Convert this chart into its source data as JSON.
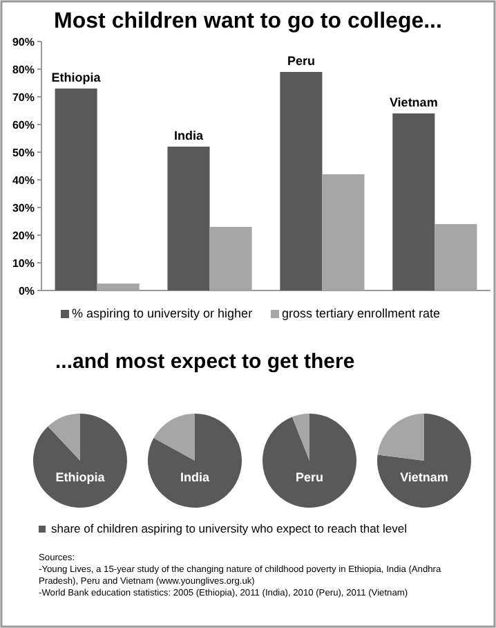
{
  "chart_data": [
    {
      "type": "bar",
      "title": "Most children want to go to college...",
      "categories": [
        "Ethiopia",
        "India",
        "Peru",
        "Vietnam"
      ],
      "series": [
        {
          "name": "% aspiring to university or higher",
          "color": "#595959",
          "values": [
            73,
            52,
            79,
            64
          ]
        },
        {
          "name": "gross tertiary enrollment rate",
          "color": "#a6a6a6",
          "values": [
            2.5,
            23,
            42,
            24
          ]
        }
      ],
      "ylim": [
        0,
        90
      ],
      "yticks": [
        {
          "value": 0,
          "label": "0%"
        },
        {
          "value": 10,
          "label": "10%"
        },
        {
          "value": 20,
          "label": "20%"
        },
        {
          "value": 30,
          "label": "30%"
        },
        {
          "value": 40,
          "label": "40%"
        },
        {
          "value": 50,
          "label": "50%"
        },
        {
          "value": 60,
          "label": "60%"
        },
        {
          "value": 70,
          "label": "70%"
        },
        {
          "value": 80,
          "label": "80%"
        },
        {
          "value": 90,
          "label": "90%"
        }
      ],
      "grid": false,
      "legend": "bottom"
    },
    {
      "type": "pie",
      "subtitle": "...and most expect to get there",
      "title": "Ethiopia",
      "categories": [
        "share of children aspiring to university who expect to reach that level",
        null
      ],
      "values": [
        88,
        12
      ],
      "colors": [
        "#595959",
        "#a6a6a6"
      ],
      "legend": "bottom"
    },
    {
      "type": "pie",
      "title": "India",
      "categories": [
        null,
        null
      ],
      "values": [
        83,
        17
      ],
      "colors": [
        "#595959",
        "#a6a6a6"
      ]
    },
    {
      "type": "pie",
      "title": "Peru",
      "categories": [
        null,
        null
      ],
      "values": [
        94,
        6
      ],
      "colors": [
        "#595959",
        "#a6a6a6"
      ]
    },
    {
      "type": "pie",
      "title": "Vietnam",
      "categories": [
        null,
        null
      ],
      "values": [
        77,
        23
      ],
      "colors": [
        "#595959",
        "#a6a6a6"
      ],
      "annotations": [
        "Sources:",
        "-Young Lives, a 15-year study of the changing nature of childhood poverty in Ethiopia, India (Andhra",
        "Pradesh), Peru and Vietnam (www.younglives.org.uk)",
        "-World Bank education statistics: 2005 (Ethiopia), 2011 (India), 2010 (Peru), 2011 (Vietnam)"
      ]
    }
  ]
}
